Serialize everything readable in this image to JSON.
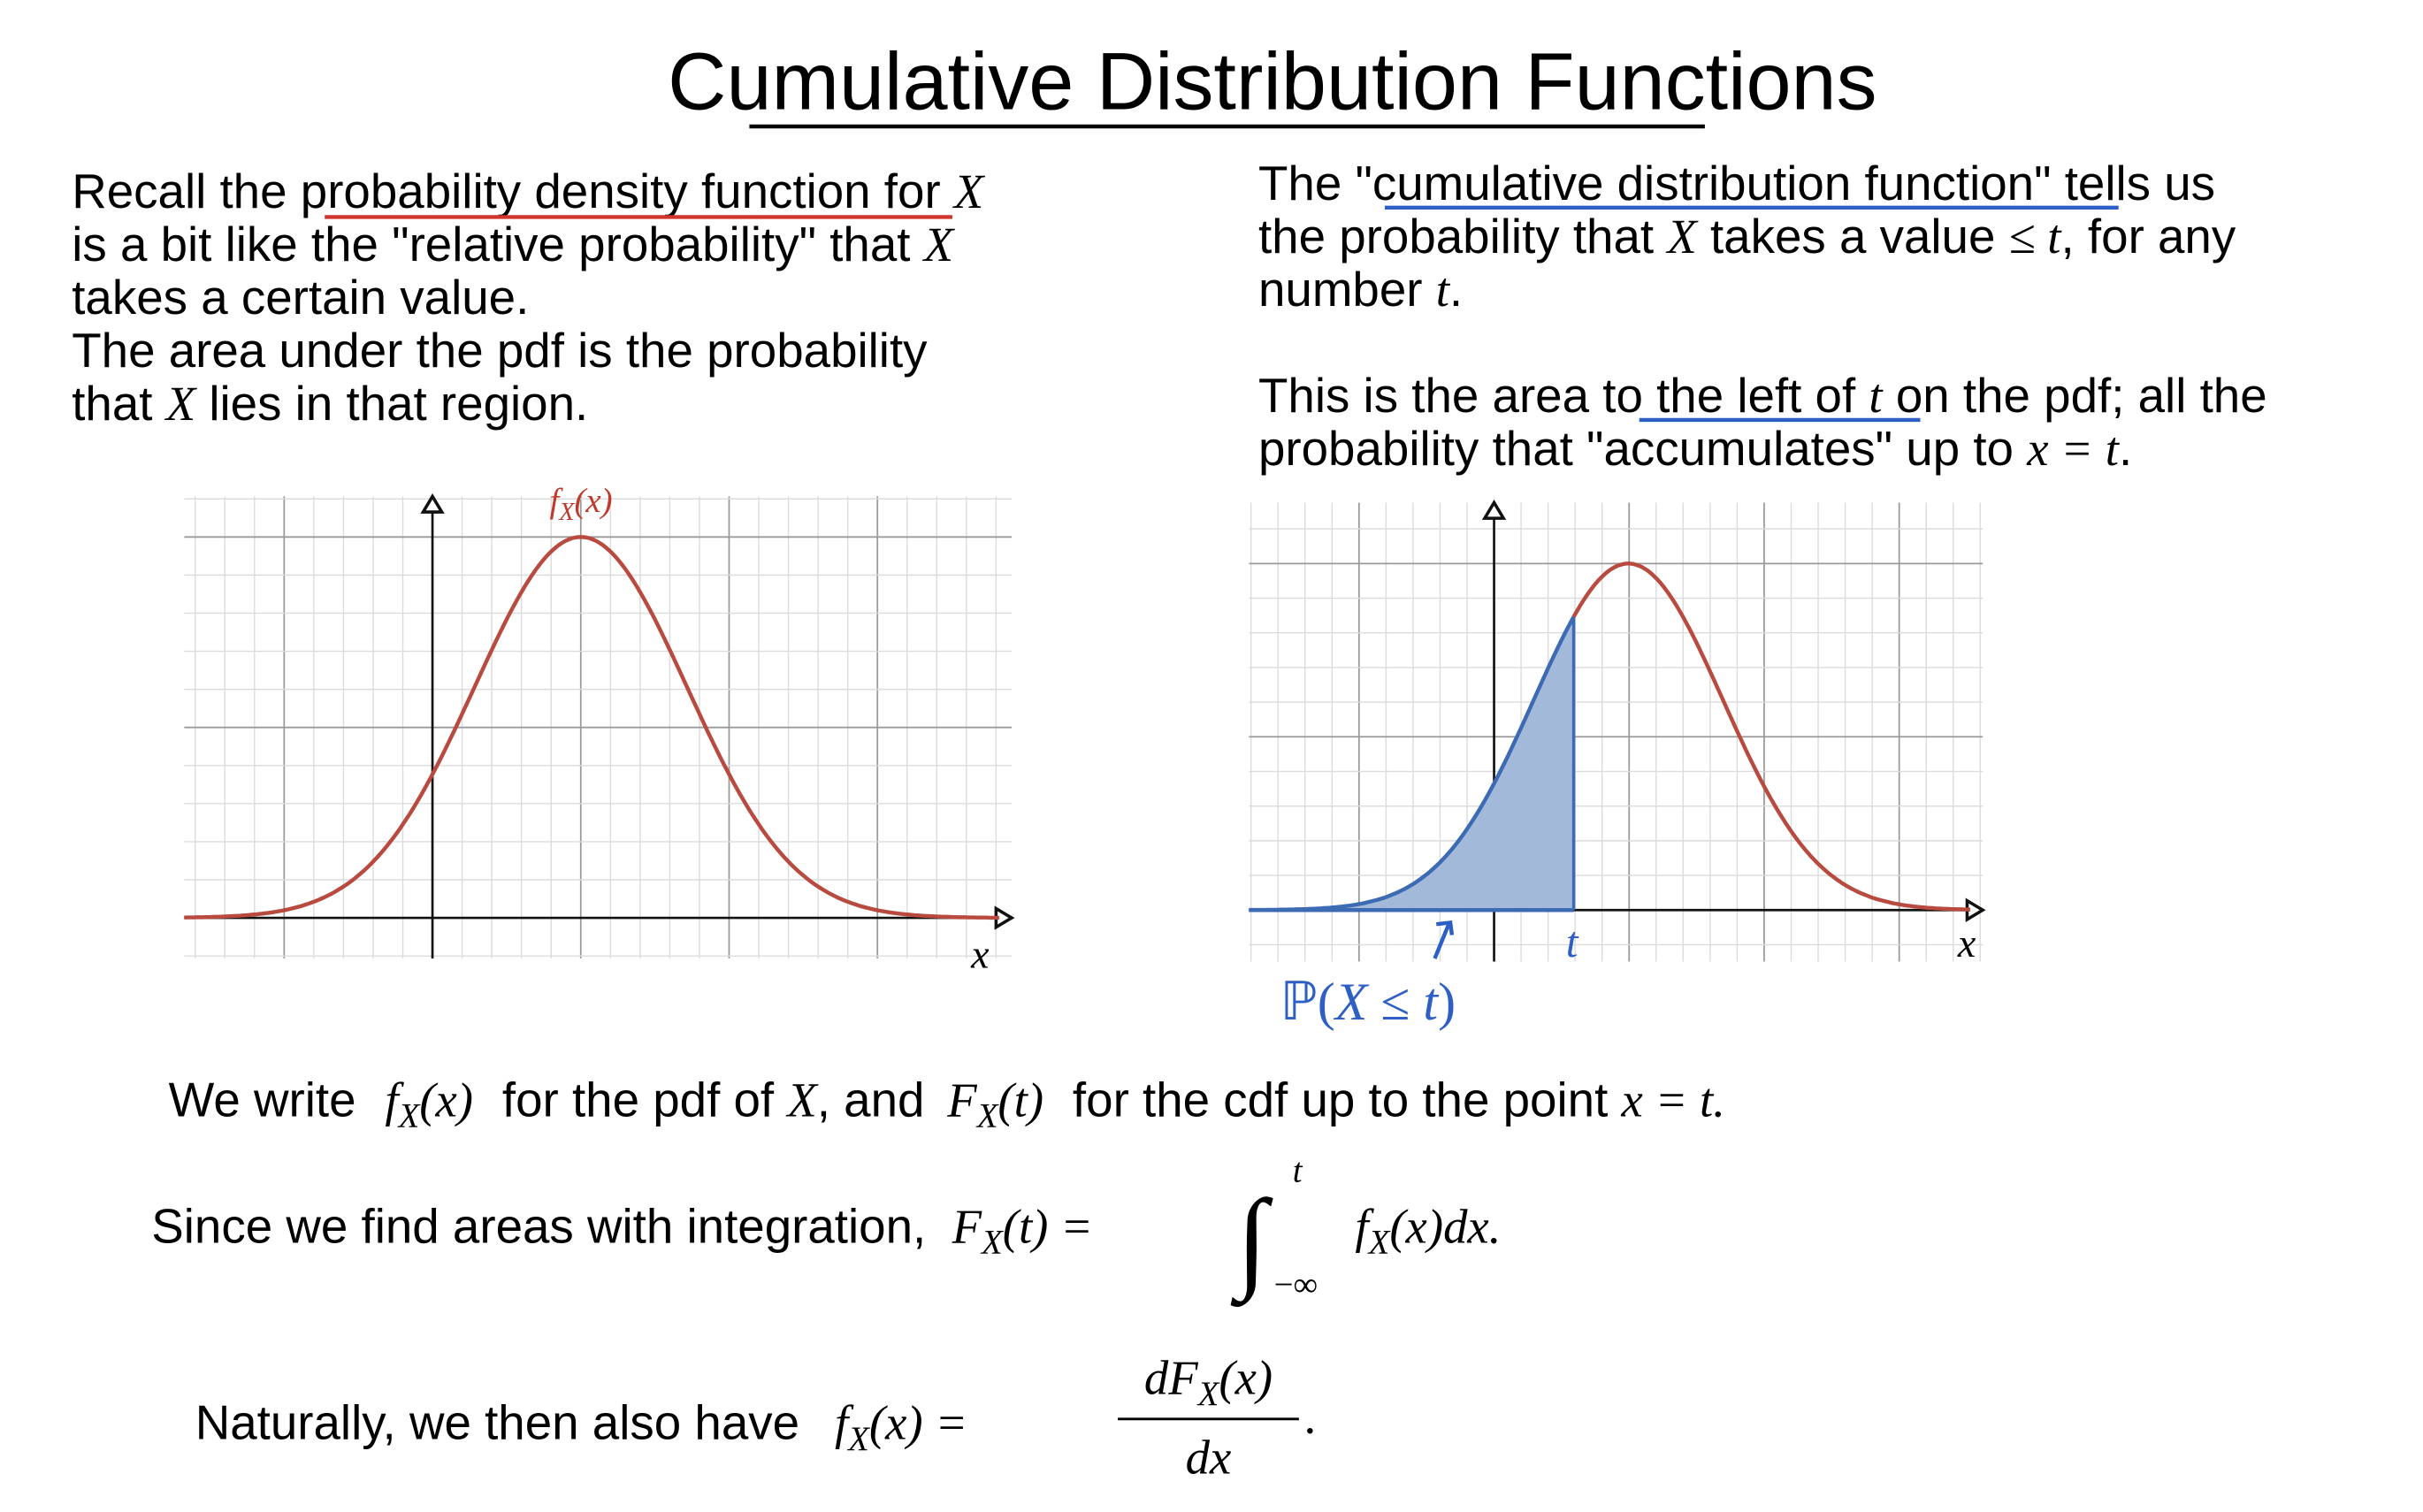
{
  "title": "Cumulative Distribution Functions",
  "left": [
    [
      "Recall the ",
      "probability density function",
      " for ",
      "X"
    ],
    [
      "is a bit like the \"relative probability\" that ",
      "X"
    ],
    [
      "takes a certain value."
    ],
    [
      "The area under the pdf is the probability"
    ],
    [
      "that ",
      "X",
      " lies in that region."
    ]
  ],
  "right": [
    [
      "The \"",
      "cumulative distribution function",
      "\" tells us"
    ],
    [
      "the probability that ",
      "X",
      " takes a value ",
      "≤ t",
      ", for any"
    ],
    [
      "number ",
      "t",
      "."
    ],
    [
      "This is the area ",
      "to the left of",
      " ",
      "t",
      " on the pdf; all the"
    ],
    [
      "probability that \"accumulates\" up to ",
      "x = t",
      "."
    ]
  ],
  "pdf_plot": {
    "label": [
      "f",
      "X",
      "(x)"
    ],
    "x_label": "x"
  },
  "cdf_plot": {
    "t_label": "t",
    "x_label": "x",
    "prob_label": [
      "ℙ(",
      "X",
      " ≤ ",
      "t",
      ")"
    ]
  },
  "formulas": [
    [
      "We write ",
      "f",
      "X",
      "(x)",
      " for the pdf of ",
      "X",
      ", and ",
      "F",
      "X",
      "(t)",
      " for the cdf up to the point ",
      "x = t",
      "."
    ],
    [
      "Since we find areas with integration, ",
      "F",
      "X",
      "(t) = ",
      "∫",
      "t",
      "−∞",
      "f",
      "X",
      "(x)dx."
    ],
    [
      "Naturally, we then also have ",
      "f",
      "X",
      "(x) = ",
      "dF",
      "X",
      "(x)",
      "dx",
      "."
    ]
  ]
}
